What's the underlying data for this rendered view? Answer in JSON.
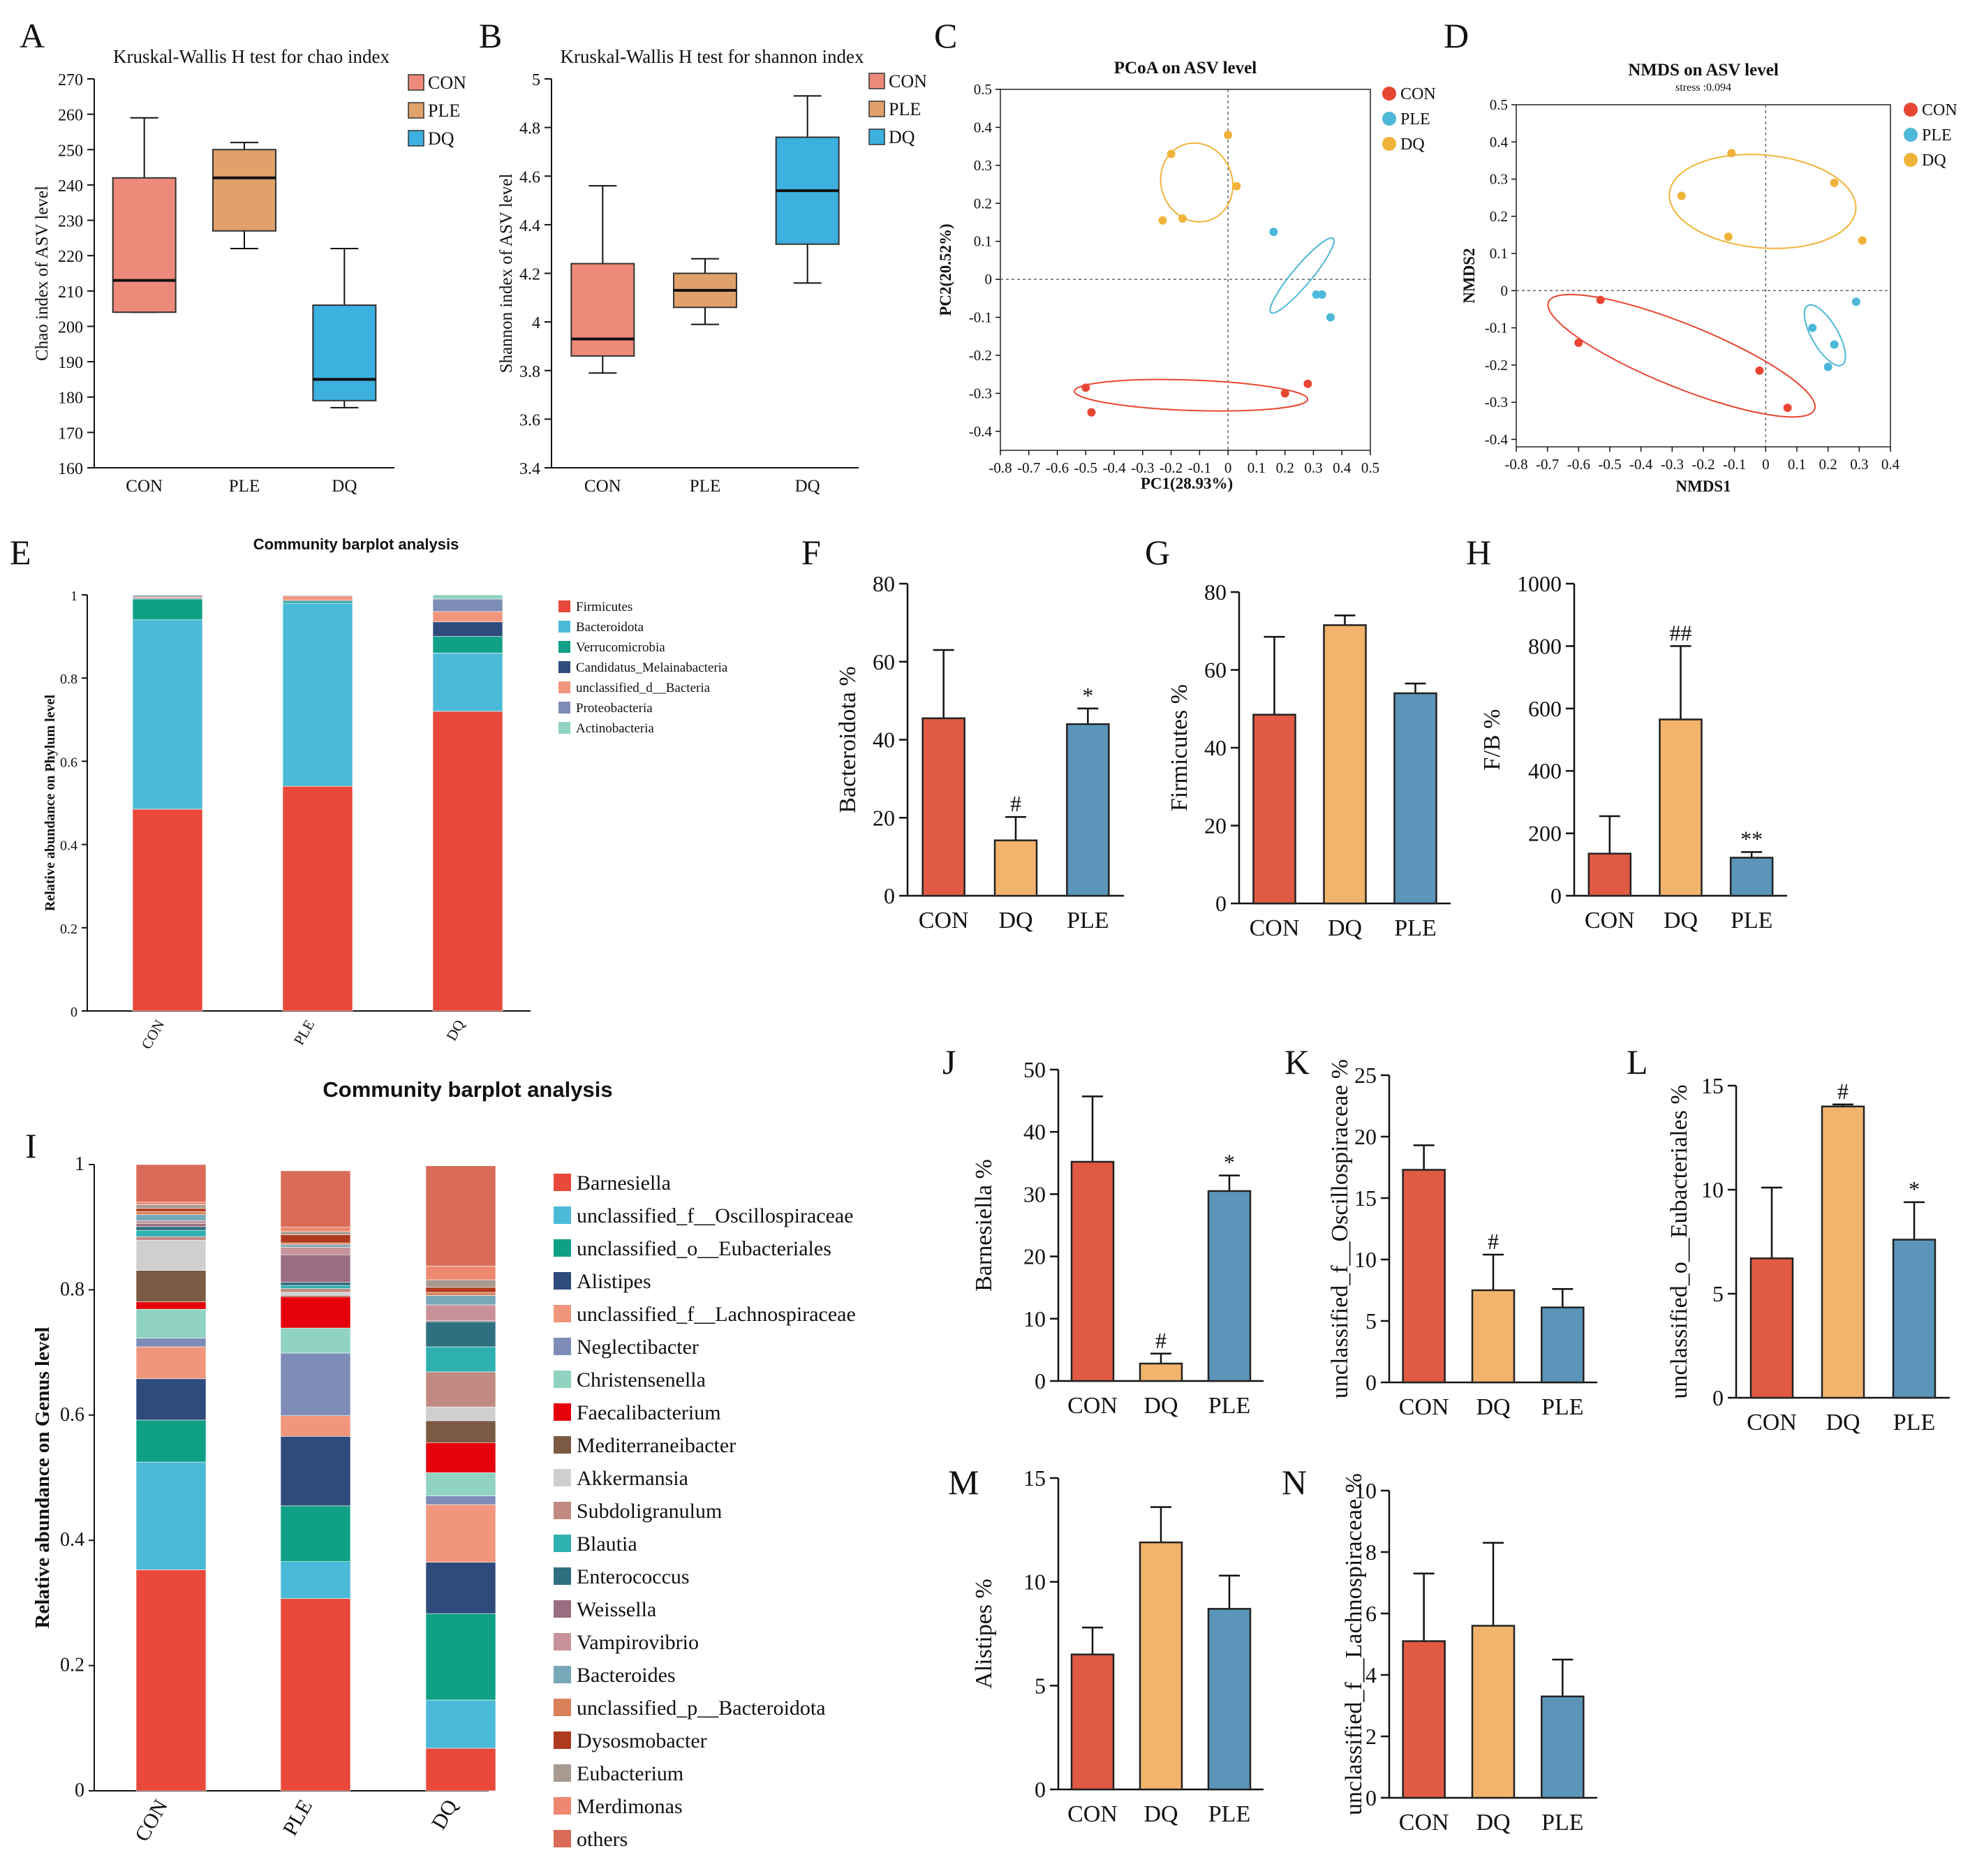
{
  "figure": {
    "panel_letters": [
      "A",
      "B",
      "C",
      "D",
      "E",
      "F",
      "G",
      "H",
      "I",
      "J",
      "K",
      "L",
      "M",
      "N"
    ]
  },
  "colors": {
    "con": "#e05a44",
    "dq": "#f2b46d",
    "ple": "#5b95b9",
    "box_con": "#ee8a7a",
    "box_ple": "#e0a16a",
    "box_dq": "#3cb0de",
    "scatter_con": "#e84632",
    "scatter_ple": "#4db8d8",
    "scatter_dq": "#f0b33a"
  },
  "chart_data": [
    {
      "panel": "A",
      "type": "box",
      "title": "Kruskal-Wallis H test for chao index",
      "xlabel": "",
      "ylabel": "Chao index of ASV level",
      "ylim": [
        160,
        270
      ],
      "ticks": [
        160,
        170,
        180,
        190,
        200,
        210,
        220,
        230,
        240,
        250,
        260,
        270
      ],
      "legend": [
        "CON",
        "PLE",
        "DQ"
      ],
      "groups": [
        {
          "name": "CON",
          "min": 204,
          "q1": 204,
          "median": 213,
          "q3": 242,
          "max": 259
        },
        {
          "name": "PLE",
          "min": 222,
          "q1": 227,
          "median": 242,
          "q3": 250,
          "max": 252
        },
        {
          "name": "DQ",
          "min": 177,
          "q1": 179,
          "median": 185,
          "q3": 206,
          "max": 222
        }
      ]
    },
    {
      "panel": "B",
      "type": "box",
      "title": "Kruskal-Wallis H test for shannon index",
      "xlabel": "",
      "ylabel": "Shannon index of ASV level",
      "ylim": [
        3.4,
        5.0
      ],
      "ticks": [
        3.4,
        3.6,
        3.8,
        4.0,
        4.2,
        4.4,
        4.6,
        4.8,
        5.0
      ],
      "tick_labels": [
        "3.4",
        "3.6",
        "3.8",
        "4",
        "4.2",
        "4.4",
        "4.6",
        "4.8",
        "5"
      ],
      "legend": [
        "CON",
        "PLE",
        "DQ"
      ],
      "groups": [
        {
          "name": "CON",
          "min": 3.79,
          "q1": 3.86,
          "median": 3.93,
          "q3": 4.24,
          "max": 4.56
        },
        {
          "name": "PLE",
          "min": 3.99,
          "q1": 4.06,
          "median": 4.13,
          "q3": 4.2,
          "max": 4.26
        },
        {
          "name": "DQ",
          "min": 4.16,
          "q1": 4.32,
          "median": 4.54,
          "q3": 4.76,
          "max": 4.93
        }
      ]
    },
    {
      "panel": "C",
      "type": "scatter",
      "title": "PCoA on ASV level",
      "subtitle": "",
      "xlabel": "PC1(28.93%)",
      "ylabel": "PC2(20.52%)",
      "xlim": [
        -0.8,
        0.5
      ],
      "ylim": [
        -0.45,
        0.5
      ],
      "xticks": [
        -0.8,
        -0.7,
        -0.6,
        -0.5,
        -0.4,
        -0.3,
        -0.2,
        -0.1,
        0,
        0.1,
        0.2,
        0.3,
        0.4,
        0.5
      ],
      "xtick_labels": [
        "-0.8",
        "-0.7",
        "-0.6",
        "-0.5",
        "-0.4",
        "-0.3",
        "-0.2",
        "-0.1",
        "0",
        "0.1",
        "0.2",
        "0.3",
        "0.4",
        "0.5"
      ],
      "yticks": [
        -0.4,
        -0.3,
        -0.2,
        -0.1,
        0,
        0.1,
        0.2,
        0.3,
        0.4,
        0.5
      ],
      "ytick_labels": [
        "-0.4",
        "-0.3",
        "-0.2",
        "-0.1",
        "0",
        "0.1",
        "0.2",
        "0.3",
        "0.4",
        "0.5"
      ],
      "legend": [
        "CON",
        "PLE",
        "DQ"
      ],
      "series": [
        {
          "name": "CON",
          "points": [
            [
              -0.5,
              -0.285
            ],
            [
              -0.48,
              -0.35
            ],
            [
              0.2,
              -0.3
            ],
            [
              0.28,
              -0.275
            ]
          ],
          "ellipse": {
            "cx": -0.13,
            "cy": -0.305,
            "rx": 0.41,
            "ry": 0.04,
            "angle": -2
          }
        },
        {
          "name": "PLE",
          "points": [
            [
              0.16,
              0.125
            ],
            [
              0.31,
              -0.04
            ],
            [
              0.33,
              -0.04
            ],
            [
              0.36,
              -0.1
            ]
          ],
          "ellipse": {
            "cx": 0.26,
            "cy": 0.01,
            "rx": 0.17,
            "ry": 0.025,
            "angle": 50
          }
        },
        {
          "name": "DQ",
          "points": [
            [
              -0.2,
              0.33
            ],
            [
              -0.23,
              0.155
            ],
            [
              -0.16,
              0.16
            ],
            [
              0,
              0.38
            ],
            [
              0.03,
              0.245
            ]
          ],
          "ellipse": {
            "cx": -0.11,
            "cy": 0.255,
            "rx": 0.125,
            "ry": 0.105,
            "angle": 20
          }
        }
      ]
    },
    {
      "panel": "D",
      "type": "scatter",
      "title": "NMDS on ASV level",
      "subtitle": "stress :0.094",
      "xlabel": "NMDS1",
      "ylabel": "NMDS2",
      "xlim": [
        -0.8,
        0.4
      ],
      "ylim": [
        -0.42,
        0.5
      ],
      "xticks": [
        -0.8,
        -0.7,
        -0.6,
        -0.5,
        -0.4,
        -0.3,
        -0.2,
        -0.1,
        0,
        0.1,
        0.2,
        0.3,
        0.4
      ],
      "xtick_labels": [
        "-0.8",
        "-0.7",
        "-0.6",
        "-0.5",
        "-0.4",
        "-0.3",
        "-0.2",
        "-0.1",
        "0",
        "0.1",
        "0.2",
        "0.3",
        "0.4"
      ],
      "yticks": [
        -0.4,
        -0.3,
        -0.2,
        -0.1,
        0,
        0.1,
        0.2,
        0.3,
        0.4,
        0.5
      ],
      "ytick_labels": [
        "-0.4",
        "-0.3",
        "-0.2",
        "-0.1",
        "0",
        "0.1",
        "0.2",
        "0.3",
        "0.4",
        "0.5"
      ],
      "legend": [
        "CON",
        "PLE",
        "DQ"
      ],
      "series": [
        {
          "name": "CON",
          "points": [
            [
              -0.53,
              -0.025
            ],
            [
              -0.6,
              -0.14
            ],
            [
              -0.02,
              -0.215
            ],
            [
              0.07,
              -0.315
            ]
          ],
          "ellipse": {
            "cx": -0.27,
            "cy": -0.175,
            "rx": 0.46,
            "ry": 0.085,
            "angle": -22
          }
        },
        {
          "name": "PLE",
          "points": [
            [
              0.15,
              -0.1
            ],
            [
              0.29,
              -0.03
            ],
            [
              0.22,
              -0.145
            ],
            [
              0.2,
              -0.205
            ]
          ],
          "ellipse": {
            "cx": 0.19,
            "cy": -0.12,
            "rx": 0.11,
            "ry": 0.035,
            "angle": -60
          }
        },
        {
          "name": "DQ",
          "points": [
            [
              -0.27,
              0.255
            ],
            [
              -0.11,
              0.37
            ],
            [
              -0.12,
              0.145
            ],
            [
              0.22,
              0.29
            ],
            [
              0.31,
              0.135
            ]
          ],
          "ellipse": {
            "cx": -0.01,
            "cy": 0.24,
            "rx": 0.3,
            "ry": 0.125,
            "angle": -5
          }
        }
      ]
    },
    {
      "panel": "E",
      "type": "stacked-bar",
      "title": "Community barplot analysis",
      "ylabel": "Relative abundance on Phylum level",
      "ylim": [
        0,
        1
      ],
      "ticks": [
        0,
        0.2,
        0.4,
        0.6,
        0.8,
        1
      ],
      "tick_labels": [
        "0",
        "0.2",
        "0.4",
        "0.6",
        "0.8",
        "1"
      ],
      "categories": [
        "CON",
        "PLE",
        "DQ"
      ],
      "series": [
        {
          "name": "Firmicutes",
          "color": "#e8493a",
          "values": [
            0.485,
            0.54,
            0.72
          ]
        },
        {
          "name": "Bacteroidota",
          "color": "#4bbad8",
          "values": [
            0.455,
            0.44,
            0.14
          ]
        },
        {
          "name": "Verrucomicrobia",
          "color": "#10a085",
          "values": [
            0.05,
            0.005,
            0.04
          ]
        },
        {
          "name": "Candidatus_Melainabacteria",
          "color": "#2f4b7c",
          "values": [
            0.002,
            0.002,
            0.035
          ]
        },
        {
          "name": "unclassified_d__Bacteria",
          "color": "#f0967c",
          "values": [
            0.003,
            0.01,
            0.025
          ]
        },
        {
          "name": "Proteobacteria",
          "color": "#7d8db8",
          "values": [
            0.004,
            0.002,
            0.03
          ]
        },
        {
          "name": "Actinobacteria",
          "color": "#8fd3c0",
          "values": [
            0.001,
            0.001,
            0.01
          ]
        }
      ]
    },
    {
      "panel": "F",
      "type": "bar",
      "ylabel": "Bacteroidota %",
      "ylim": [
        0,
        80
      ],
      "ticks": [
        0,
        20,
        40,
        60,
        80
      ],
      "categories": [
        "CON",
        "DQ",
        "PLE"
      ],
      "values": [
        45.5,
        14.2,
        44
      ],
      "errors": [
        17.5,
        6,
        4
      ],
      "annotations": [
        "",
        "#",
        "*"
      ]
    },
    {
      "panel": "G",
      "type": "bar",
      "ylabel": "Firmicutes %",
      "ylim": [
        0,
        80
      ],
      "ticks": [
        0,
        20,
        40,
        60,
        80
      ],
      "categories": [
        "CON",
        "DQ",
        "PLE"
      ],
      "values": [
        48.5,
        71.5,
        54
      ],
      "errors": [
        20,
        2.5,
        2.5
      ],
      "annotations": [
        "",
        "",
        ""
      ]
    },
    {
      "panel": "H",
      "type": "bar",
      "ylabel": "F/B %",
      "ylim": [
        0,
        1000
      ],
      "ticks": [
        0,
        200,
        400,
        600,
        800,
        1000
      ],
      "categories": [
        "CON",
        "DQ",
        "PLE"
      ],
      "values": [
        135,
        565,
        122
      ],
      "errors": [
        120,
        235,
        18
      ],
      "annotations": [
        "",
        "##",
        "**"
      ]
    },
    {
      "panel": "I",
      "type": "stacked-bar",
      "title": "Community barplot analysis",
      "ylabel": "Relative abundance on Genus level",
      "ylim": [
        0,
        1
      ],
      "ticks": [
        0,
        0.2,
        0.4,
        0.6,
        0.8,
        1
      ],
      "tick_labels": [
        "0",
        "0.2",
        "0.4",
        "0.6",
        "0.8",
        "1"
      ],
      "categories": [
        "CON",
        "PLE",
        "DQ"
      ],
      "series": [
        {
          "name": "Barnesiella",
          "color": "#e8493a",
          "values": [
            0.353,
            0.307,
            0.068
          ]
        },
        {
          "name": "unclassified_f__Oscillospiraceae",
          "color": "#4bbad8",
          "values": [
            0.172,
            0.059,
            0.077
          ]
        },
        {
          "name": "unclassified_o__Eubacteriales",
          "color": "#10a085",
          "values": [
            0.067,
            0.089,
            0.138
          ]
        },
        {
          "name": "Alistipes",
          "color": "#2f4b7c",
          "values": [
            0.066,
            0.111,
            0.082
          ]
        },
        {
          "name": "unclassified_f__Lachnospiraceae",
          "color": "#f0967c",
          "values": [
            0.051,
            0.033,
            0.092
          ]
        },
        {
          "name": "Neglectibacter",
          "color": "#7d8db8",
          "values": [
            0.014,
            0.1,
            0.014
          ]
        },
        {
          "name": "Christensenella",
          "color": "#8fd3c0",
          "values": [
            0.046,
            0.04,
            0.037
          ]
        },
        {
          "name": "Faecalibacterium",
          "color": "#e5000b",
          "values": [
            0.012,
            0.05,
            0.048
          ]
        },
        {
          "name": "Mediterraneibacter",
          "color": "#7a5a42",
          "values": [
            0.05,
            0.002,
            0.035
          ]
        },
        {
          "name": "Akkermansia",
          "color": "#cfcfcf",
          "values": [
            0.048,
            0.005,
            0.022
          ]
        },
        {
          "name": "Subdoligranulum",
          "color": "#c08a82",
          "values": [
            0.006,
            0.006,
            0.056
          ]
        },
        {
          "name": "Blautia",
          "color": "#2fb0b0",
          "values": [
            0.01,
            0.005,
            0.04
          ]
        },
        {
          "name": "Enterococcus",
          "color": "#2f7080",
          "values": [
            0.006,
            0.005,
            0.04
          ]
        },
        {
          "name": "Weissella",
          "color": "#9a6d80",
          "values": [
            0.005,
            0.044,
            0.002
          ]
        },
        {
          "name": "Vampirovibrio",
          "color": "#c9929a",
          "values": [
            0.004,
            0.012,
            0.025
          ]
        },
        {
          "name": "Bacteroides",
          "color": "#78a7b8",
          "values": [
            0.01,
            0.004,
            0.015
          ]
        },
        {
          "name": "unclassified_p__Bacteroidota",
          "color": "#d98058",
          "values": [
            0.005,
            0.003,
            0.005
          ]
        },
        {
          "name": "Dysosmobacter",
          "color": "#b03a20",
          "values": [
            0.005,
            0.013,
            0.008
          ]
        },
        {
          "name": "Eubacterium",
          "color": "#a89a90",
          "values": [
            0.006,
            0.005,
            0.012
          ]
        },
        {
          "name": "Merdimonas",
          "color": "#ee8870",
          "values": [
            0.004,
            0.007,
            0.022
          ]
        },
        {
          "name": "others",
          "color": "#d96b58",
          "values": [
            0.06,
            0.09,
            0.16
          ]
        }
      ]
    },
    {
      "panel": "J",
      "type": "bar",
      "ylabel": "Barnesiella %",
      "ylim": [
        0,
        50
      ],
      "ticks": [
        0,
        10,
        20,
        30,
        40,
        50
      ],
      "categories": [
        "CON",
        "DQ",
        "PLE"
      ],
      "values": [
        35.2,
        2.8,
        30.5
      ],
      "errors": [
        10.5,
        1.6,
        2.5
      ],
      "annotations": [
        "",
        "#",
        "*"
      ]
    },
    {
      "panel": "K",
      "type": "bar",
      "ylabel": "unclassified_f__Oscillospiraceae %",
      "ylim": [
        0,
        25
      ],
      "ticks": [
        0,
        5,
        10,
        15,
        20,
        25
      ],
      "categories": [
        "CON",
        "DQ",
        "PLE"
      ],
      "values": [
        17.3,
        7.5,
        6.1
      ],
      "errors": [
        2,
        2.9,
        1.5
      ],
      "annotations": [
        "",
        "#",
        ""
      ]
    },
    {
      "panel": "L",
      "type": "bar",
      "ylabel": "unclassified_o__Eubacteriales %",
      "ylim": [
        0,
        15
      ],
      "ticks": [
        0,
        5,
        10,
        15
      ],
      "categories": [
        "CON",
        "DQ",
        "PLE"
      ],
      "values": [
        6.7,
        14,
        7.6
      ],
      "errors": [
        3.4,
        0.1,
        1.8
      ],
      "annotations": [
        "",
        "#",
        "*"
      ]
    },
    {
      "panel": "M",
      "type": "bar",
      "ylabel": "Alistipes %",
      "ylim": [
        0,
        15
      ],
      "ticks": [
        0,
        5,
        10,
        15
      ],
      "categories": [
        "CON",
        "DQ",
        "PLE"
      ],
      "values": [
        6.5,
        11.9,
        8.7
      ],
      "errors": [
        1.3,
        1.7,
        1.6
      ],
      "annotations": [
        "",
        "",
        ""
      ]
    },
    {
      "panel": "N",
      "type": "bar",
      "ylabel": "unclassified_f__Lachnospiraceae %",
      "ylim": [
        0,
        10
      ],
      "ticks": [
        0,
        2,
        4,
        6,
        8,
        10
      ],
      "categories": [
        "CON",
        "DQ",
        "PLE"
      ],
      "values": [
        5.1,
        5.6,
        3.3
      ],
      "errors": [
        2.2,
        2.7,
        1.2
      ],
      "annotations": [
        "",
        "",
        ""
      ]
    }
  ]
}
